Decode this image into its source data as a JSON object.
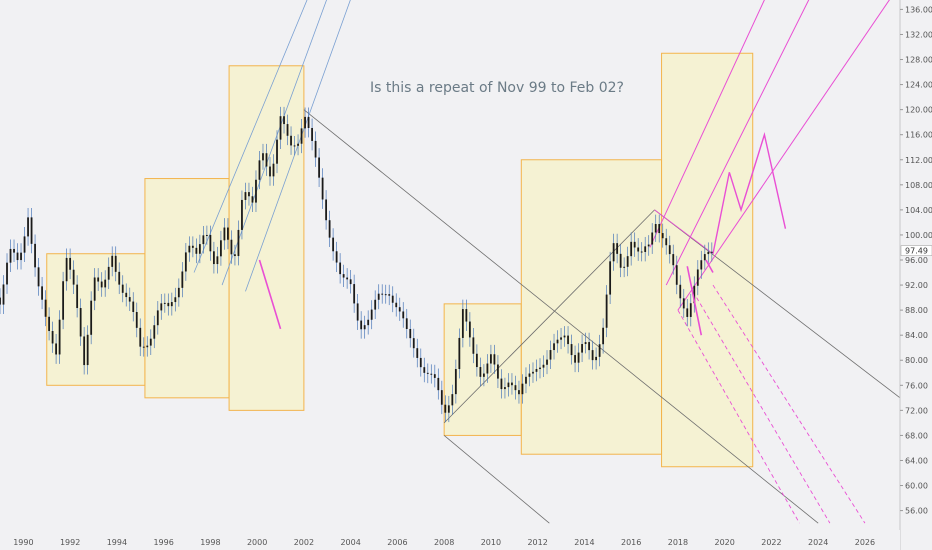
{
  "colors": {
    "background": "#f1f1f3",
    "box_fill": "#f6f1c8",
    "box_stroke": "#f3b44c",
    "candle": "#1a1a1a",
    "wick": "#4a77b8",
    "magenta": "#e94fd4",
    "gray_line": "#6e6e6e",
    "blue_line": "#7aa0d2"
  },
  "chart_data": {
    "type": "line",
    "title": "Is this a repeat of Nov 99 to Feb 02?",
    "x_ticks": [
      "1990",
      "1992",
      "1994",
      "1996",
      "1998",
      "2000",
      "2002",
      "2004",
      "2006",
      "2008",
      "2010",
      "2012",
      "2014",
      "2016",
      "2018",
      "2020",
      "2022",
      "2024",
      "2026"
    ],
    "y_ticks": [
      "136.00",
      "132.00",
      "128.00",
      "124.00",
      "120.00",
      "116.00",
      "112.00",
      "108.00",
      "104.00",
      "100.00",
      "96.00",
      "92.00",
      "88.00",
      "84.00",
      "80.00",
      "76.00",
      "72.00",
      "68.00",
      "64.00",
      "60.00",
      "56.00"
    ],
    "last_price": "97.49",
    "xlim": [
      1989.0,
      2027.5
    ],
    "ylim": [
      54.5,
      137.5
    ],
    "grid": false,
    "series": [
      {
        "x": [
          1989.0,
          1989.4,
          1989.8,
          1990.2,
          1990.6,
          1991.0,
          1991.4,
          1991.8,
          1992.2,
          1992.6,
          1993.0,
          1993.4,
          1993.8,
          1994.2,
          1994.6,
          1995.0,
          1995.4,
          1995.8,
          1996.2,
          1996.6,
          1997.0,
          1997.4,
          1997.8,
          1998.2,
          1998.6,
          1999.0,
          1999.4,
          1999.8,
          2000.2,
          2000.6,
          2001.0,
          2001.4,
          2001.8,
          2002.0,
          2002.4,
          2002.8,
          2003.2,
          2003.6,
          2004.0,
          2004.4,
          2004.8,
          2005.2,
          2005.6,
          2006.0,
          2006.4,
          2006.8,
          2007.2,
          2007.6,
          2008.0,
          2008.4,
          2008.8,
          2009.2,
          2009.6,
          2010.0,
          2010.4,
          2010.8,
          2011.2,
          2011.6,
          2012.0,
          2012.4,
          2012.8,
          2013.2,
          2013.6,
          2014.0,
          2014.4,
          2014.8,
          2015.2,
          2015.6,
          2016.0,
          2016.4,
          2016.8,
          2017.0,
          2017.4,
          2017.8,
          2018.0,
          2018.4,
          2018.8,
          2019.2,
          2019.5
        ],
        "values": [
          90,
          97,
          95,
          104,
          92,
          85,
          82,
          97,
          90,
          80,
          94,
          90,
          97,
          92,
          88,
          82,
          84,
          88,
          88,
          92,
          98,
          96,
          102,
          95,
          100,
          96,
          108,
          104,
          114,
          110,
          118,
          114,
          116,
          120,
          113,
          106,
          99,
          92,
          92,
          86,
          86,
          90,
          92,
          88,
          84,
          82,
          78,
          76,
          72,
          76,
          87,
          82,
          78,
          80,
          75,
          78,
          74,
          77,
          80,
          80,
          82,
          85,
          80,
          82,
          80,
          86,
          98,
          94,
          100,
          96,
          98,
          103,
          100,
          94,
          90,
          88,
          94,
          96,
          97.49
        ]
      }
    ],
    "annotations": [
      {
        "type": "box",
        "x": [
          1991.0,
          1995.2
        ],
        "y": [
          76,
          97
        ]
      },
      {
        "type": "box",
        "x": [
          1995.2,
          1998.8
        ],
        "y": [
          74,
          109
        ]
      },
      {
        "type": "box",
        "x": [
          1998.8,
          2002.0
        ],
        "y": [
          72,
          127
        ]
      },
      {
        "type": "box",
        "x": [
          2008.0,
          2011.3
        ],
        "y": [
          68,
          89
        ]
      },
      {
        "type": "box",
        "x": [
          2011.3,
          2017.3
        ],
        "y": [
          65,
          112
        ]
      },
      {
        "type": "box",
        "x": [
          2017.3,
          2021.2
        ],
        "y": [
          63,
          129
        ]
      }
    ]
  }
}
